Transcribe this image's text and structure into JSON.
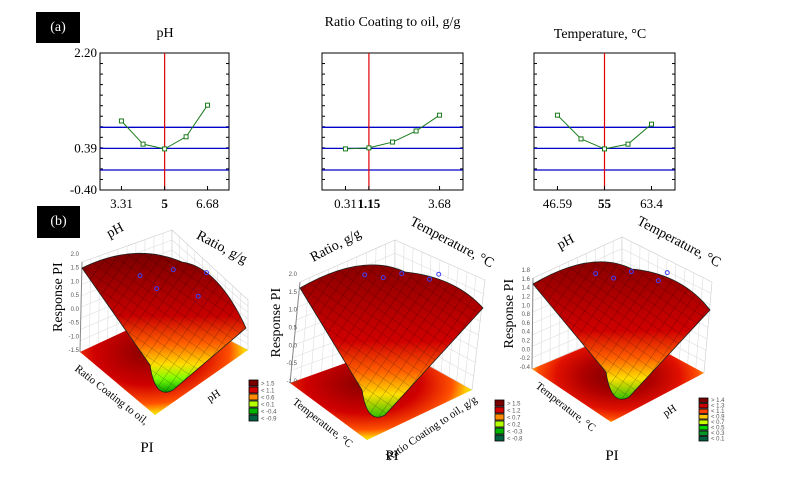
{
  "panel_labels": {
    "a": "(a)",
    "b": "(b)"
  },
  "chart_data": [
    {
      "type": "line",
      "panel": "(a)",
      "title": "pH",
      "xlabel": "pH",
      "ylabel": "",
      "ylim": [
        -0.4,
        2.2
      ],
      "yticks": [
        "2.20",
        "0.39",
        "-0.40"
      ],
      "yticks_values": [
        2.2,
        0.39,
        -0.4
      ],
      "xticks": [
        "3.31",
        "5",
        "6.68"
      ],
      "xticks_values": [
        3.31,
        5,
        6.68
      ],
      "xticks_bold": [
        false,
        true,
        false
      ],
      "xlim": [
        2.47,
        7.52
      ],
      "x": [
        3.31,
        4.155,
        5,
        5.84,
        6.68
      ],
      "y": [
        0.91,
        0.47,
        0.38,
        0.61,
        1.21
      ],
      "optimum_x": 5,
      "reference_lines": [
        0.79,
        0.39,
        -0.02
      ],
      "colors": {
        "curve": "#1a7a1a",
        "optimum": "#e00000",
        "reference": "#0000c8"
      }
    },
    {
      "type": "line",
      "panel": "(a)",
      "title": "Ratio Coating to oil, g/g",
      "xlabel": "Ratio Coating to oil, g/g",
      "ylabel": "",
      "ylim": [
        -0.4,
        2.2
      ],
      "xticks": [
        "0.31",
        "1.15",
        "3.68"
      ],
      "xticks_values": [
        0.31,
        1.15,
        3.68
      ],
      "xticks_bold": [
        false,
        true,
        false
      ],
      "xlim": [
        -0.53,
        4.52
      ],
      "x": [
        0.31,
        1.15,
        1.995,
        2.84,
        3.68
      ],
      "y": [
        0.38,
        0.4,
        0.51,
        0.72,
        1.02
      ],
      "optimum_x": 1.15,
      "reference_lines": [
        0.79,
        0.39,
        -0.02
      ],
      "colors": {
        "curve": "#1a7a1a",
        "optimum": "#e00000",
        "reference": "#0000c8"
      }
    },
    {
      "type": "line",
      "panel": "(a)",
      "title": "Temperature, °C",
      "xlabel": "Temperature, °C",
      "ylabel": "",
      "ylim": [
        -0.4,
        2.2
      ],
      "xticks": [
        "46.59",
        "55",
        "63.4"
      ],
      "xticks_values": [
        46.59,
        55,
        63.4
      ],
      "xticks_bold": [
        false,
        true,
        false
      ],
      "xlim": [
        42.4,
        67.6
      ],
      "x": [
        46.59,
        50.8,
        55,
        59.2,
        63.4
      ],
      "y": [
        1.02,
        0.57,
        0.38,
        0.47,
        0.85
      ],
      "optimum_x": 55,
      "reference_lines": [
        0.79,
        0.39,
        -0.02
      ],
      "colors": {
        "curve": "#1a7a1a",
        "optimum": "#e00000",
        "reference": "#0000c8"
      }
    },
    {
      "type": "surface",
      "panel": "(b)",
      "title": "PI",
      "zlabel": "Response PI",
      "axis_top_left": "pH",
      "axis_top_right": "Ratio, g/g",
      "axis_bottom_left": "Ratio Coating to oil,",
      "axis_bottom_right": "pH",
      "zticks": [
        "2.0",
        "1.5",
        "1.0",
        "0.5",
        "0.0",
        "-0.5",
        "-1.0",
        "-1.5"
      ],
      "legend": [
        "> 1.5",
        "< 1.1",
        "< 0.6",
        "< 0.1",
        "< -0.4",
        "< -0.9"
      ],
      "legend_colors": [
        "#7a0000",
        "#d40000",
        "#ff8c00",
        "#b4ff00",
        "#00b400",
        "#006040"
      ]
    },
    {
      "type": "surface",
      "panel": "(b)",
      "title": "PI",
      "zlabel": "Response PI",
      "axis_top_left": "Ratio, g/g",
      "axis_top_right": "Temperature, °C",
      "axis_bottom_left": "Temperature, °C",
      "axis_bottom_right": "Ratio Coating to oil, g/g",
      "zticks": [
        "2.0",
        "1.5",
        "1.0",
        "0.5",
        "0.0",
        "-0.5",
        "-1.0"
      ],
      "legend": [
        "> 1.5",
        "< 1.2",
        "< 0.7",
        "< 0.2",
        "< -0.3",
        "< -0.8"
      ],
      "legend_colors": [
        "#7a0000",
        "#d40000",
        "#ff8c00",
        "#b4ff00",
        "#00b400",
        "#006040"
      ]
    },
    {
      "type": "surface",
      "panel": "(b)",
      "title": "PI",
      "zlabel": "Response PI",
      "axis_top_left": "pH",
      "axis_top_right": "Temperature, °C",
      "axis_bottom_left": "Temperature, °C",
      "axis_bottom_right": "pH",
      "zticks": [
        "1.8",
        "1.6",
        "1.4",
        "1.2",
        "1.0",
        "0.8",
        "0.6",
        "0.4",
        "0.2",
        "0.0",
        "-0.2",
        "-0.4"
      ],
      "legend": [
        "> 1.4",
        "< 1.3",
        "< 1.1",
        "< 0.9",
        "< 0.7",
        "< 0.5",
        "< 0.3",
        "< 0.1"
      ],
      "legend_colors": [
        "#7a0000",
        "#c80000",
        "#ff4000",
        "#ffc800",
        "#c8ff00",
        "#00d200",
        "#009628",
        "#006040"
      ]
    }
  ]
}
